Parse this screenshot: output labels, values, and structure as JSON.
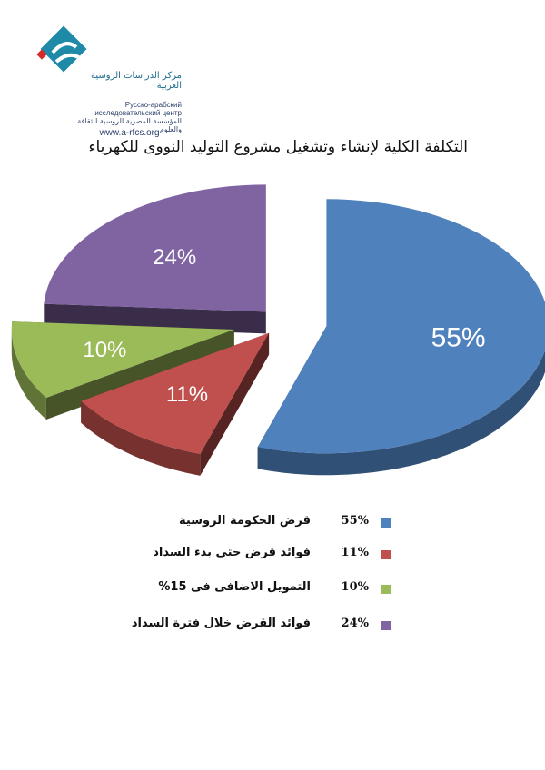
{
  "logo": {
    "arabic_name": "مركز الدراسات الروسية العربية",
    "russian_name": "Русско-арабский исследовательский центр",
    "arabic_org": "المؤسسة المصرية الروسية للثقافة والعلوم",
    "url": "www.a-rfcs.org",
    "colors": {
      "teal": "#1f8aa8",
      "navy": "#2b3f6a",
      "red": "#d42b2b"
    }
  },
  "chart_data": {
    "type": "pie",
    "title": "التكلفة الكلية لإنشاء وتشغيل مشروع التوليد النووى للكهرباء",
    "slices": [
      {
        "label": "قرض الحكومة الروسية",
        "value": 55,
        "display": "55%",
        "color": "#4f81bd"
      },
      {
        "label": "فوائد قرض حتى بدء السداد",
        "value": 11,
        "display": "11%",
        "color": "#c0504d"
      },
      {
        "label": "التمويل الاضافى فى 15%",
        "value": 10,
        "display": "10%",
        "color": "#9bbb59"
      },
      {
        "label": "فوائد القرض خلال فترة السداد",
        "value": 24,
        "display": "24%",
        "color": "#8064a2"
      }
    ],
    "legend_position": "bottom"
  }
}
